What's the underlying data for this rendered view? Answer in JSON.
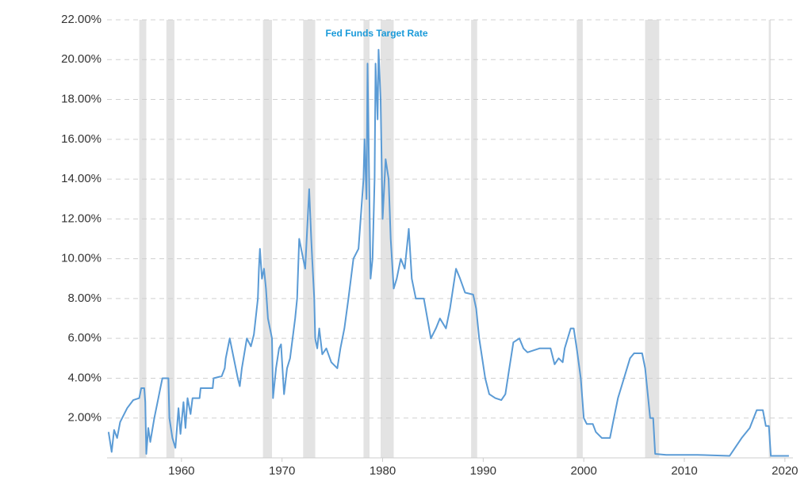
{
  "chart_data": {
    "type": "line",
    "recessions": [
      [
        1955.8,
        1956.5
      ],
      [
        1958.5,
        1959.3
      ],
      [
        1968.1,
        1969.0
      ],
      [
        1972.1,
        1973.3
      ],
      [
        1978.1,
        1978.7
      ],
      [
        1979.8,
        1981.1
      ],
      [
        1988.8,
        1989.4
      ],
      [
        1999.3,
        1999.9
      ],
      [
        2006.1,
        2007.5
      ],
      [
        2018.4,
        2018.6
      ]
    ],
    "x": [
      1952.75,
      1953.06,
      1953.3,
      1953.6,
      1953.9,
      1954.6,
      1955.2,
      1955.8,
      1956.0,
      1956.3,
      1956.4,
      1956.5,
      1956.7,
      1956.9,
      1957.3,
      1957.7,
      1957.9,
      1958.1,
      1958.7,
      1958.8,
      1959.1,
      1959.4,
      1959.7,
      1959.9,
      1960.2,
      1960.4,
      1960.6,
      1960.9,
      1961.1,
      1961.8,
      1961.9,
      1963.1,
      1963.2,
      1964.0,
      1964.3,
      1964.4,
      1964.8,
      1965.2,
      1965.6,
      1965.8,
      1966.0,
      1966.5,
      1966.9,
      1967.2,
      1967.6,
      1967.7,
      1967.8,
      1968.0,
      1968.2,
      1968.4,
      1968.6,
      1969.0,
      1969.1,
      1969.4,
      1969.7,
      1969.9,
      1970.2,
      1970.5,
      1970.8,
      1971.3,
      1971.5,
      1971.7,
      1972.1,
      1972.3,
      1972.7,
      1972.9,
      1973.0,
      1973.2,
      1973.3,
      1973.5,
      1973.7,
      1974.0,
      1974.4,
      1974.9,
      1975.5,
      1975.8,
      1976.2,
      1976.6,
      1977.1,
      1977.6,
      1978.1,
      1978.2,
      1978.4,
      1978.5,
      1978.8,
      1979.0,
      1979.2,
      1979.3,
      1979.5,
      1979.6,
      1979.8,
      1980.0,
      1980.3,
      1980.6,
      1980.8,
      1981.1,
      1981.4,
      1981.8,
      1982.2,
      1982.6,
      1982.9,
      1983.3,
      1984.1,
      1984.8,
      1985.3,
      1985.7,
      1986.3,
      1986.7,
      1987.3,
      1987.7,
      1988.2,
      1989.0,
      1989.3,
      1989.6,
      1989.9,
      1990.2,
      1990.6,
      1991.2,
      1991.8,
      1992.2,
      1992.6,
      1993.0,
      1993.6,
      1994.0,
      1994.4,
      1995.6,
      1996.7,
      1997.1,
      1997.5,
      1997.9,
      1998.1,
      1998.4,
      1998.7,
      1999.0,
      1999.3,
      1999.7,
      2000.0,
      2000.3,
      2000.9,
      2001.2,
      2001.8,
      2002.6,
      2003.0,
      2003.4,
      2004.0,
      2004.6,
      2005.0,
      2005.8,
      2006.1,
      2006.4,
      2006.6,
      2006.9,
      2007.1,
      2008.2,
      2011.3,
      2014.5,
      2014.9,
      2015.7,
      2016.5,
      2017.2,
      2017.8,
      2018.1,
      2018.4,
      2018.6,
      2020.4
    ],
    "series": [
      {
        "name": "Fed Funds Target Rate",
        "color": "#5b9bd5",
        "values": [
          1.3,
          0.3,
          1.4,
          1.0,
          1.8,
          2.5,
          2.9,
          3.0,
          3.5,
          3.5,
          2.8,
          0.2,
          1.5,
          0.8,
          2.0,
          3.0,
          3.5,
          4.0,
          4.0,
          2.0,
          1.0,
          0.5,
          2.5,
          1.2,
          2.8,
          1.5,
          3.0,
          2.2,
          3.0,
          3.0,
          3.5,
          3.5,
          4.0,
          4.1,
          4.5,
          5.0,
          6.0,
          5.0,
          4.0,
          3.6,
          4.5,
          6.0,
          5.6,
          6.2,
          8.0,
          9.5,
          10.5,
          9.0,
          9.5,
          8.5,
          7.0,
          6.0,
          3.0,
          4.5,
          5.5,
          5.7,
          3.2,
          4.5,
          5.0,
          7.0,
          8.0,
          11.0,
          10.0,
          9.5,
          13.5,
          11.0,
          10.0,
          8.0,
          6.0,
          5.5,
          6.5,
          5.2,
          5.5,
          4.8,
          4.5,
          5.5,
          6.5,
          8.0,
          10.0,
          10.5,
          14.0,
          16.0,
          13.0,
          19.8,
          9.0,
          10.0,
          14.0,
          19.8,
          17.0,
          20.5,
          18.0,
          12.0,
          15.0,
          14.0,
          11.0,
          8.5,
          9.0,
          10.0,
          9.5,
          11.5,
          9.0,
          8.0,
          8.0,
          6.0,
          6.5,
          7.0,
          6.5,
          7.5,
          9.5,
          9.0,
          8.3,
          8.2,
          7.5,
          6.0,
          5.0,
          4.0,
          3.2,
          3.0,
          2.9,
          3.2,
          4.5,
          5.8,
          6.0,
          5.5,
          5.3,
          5.5,
          5.5,
          4.7,
          5.0,
          4.8,
          5.5,
          6.0,
          6.5,
          6.5,
          5.5,
          4.0,
          2.0,
          1.7,
          1.7,
          1.3,
          1.0,
          1.0,
          2.0,
          3.0,
          4.0,
          5.0,
          5.25,
          5.25,
          4.5,
          3.0,
          2.0,
          2.0,
          0.2,
          0.15,
          0.15,
          0.1,
          0.4,
          1.0,
          1.5,
          2.4,
          2.4,
          1.6,
          1.6,
          0.1,
          0.1
        ]
      }
    ],
    "xlim": [
      1952.6,
      2020.8
    ],
    "xticks": [
      1960,
      1970,
      1980,
      1990,
      2000,
      2010,
      2020
    ],
    "ylim": [
      0,
      22
    ],
    "yticks": [
      {
        "value": 2,
        "label": "2.00%"
      },
      {
        "value": 4,
        "label": "4.00%"
      },
      {
        "value": 6,
        "label": "6.00%"
      },
      {
        "value": 8,
        "label": "8.00%"
      },
      {
        "value": 10,
        "label": "10.00%"
      },
      {
        "value": 12,
        "label": "12.00%"
      },
      {
        "value": 14,
        "label": "14.00%"
      },
      {
        "value": 16,
        "label": "16.00%"
      },
      {
        "value": 18,
        "label": "18.00%"
      },
      {
        "value": 20,
        "label": "20.00%"
      },
      {
        "value": 22,
        "label": "22.00%"
      }
    ],
    "grid": true,
    "recession_color": "#e3e3e3",
    "label_color": "#1a9ad9"
  }
}
